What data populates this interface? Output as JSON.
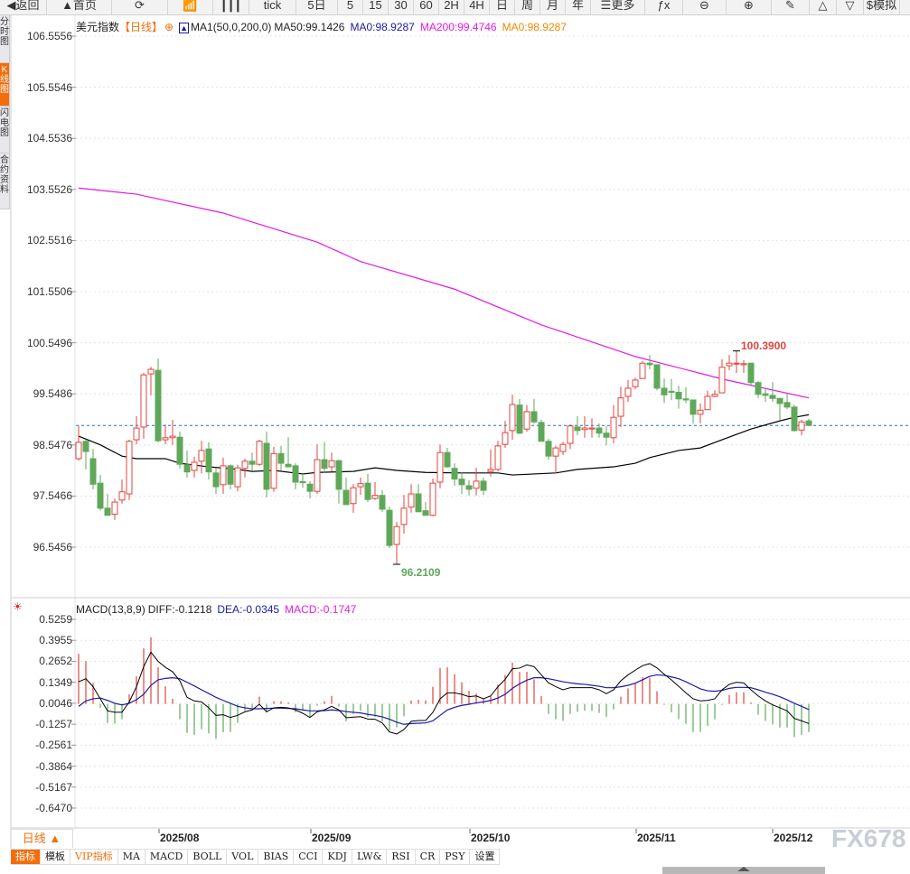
{
  "toolbar": [
    {
      "label": "◀返回",
      "icon": "back-arrow-icon"
    },
    {
      "label": "▲首页",
      "icon": "home-icon"
    },
    {
      "label": "⟳",
      "icon": "refresh-icon"
    },
    {
      "label": "📶",
      "icon": "bar-chart-icon"
    },
    {
      "label": "┃┃┃",
      "icon": "candlestick-icon"
    },
    {
      "label": "tick"
    },
    {
      "label": "5日"
    },
    {
      "label": "5"
    },
    {
      "label": "15"
    },
    {
      "label": "30"
    },
    {
      "label": "60"
    },
    {
      "label": "2H"
    },
    {
      "label": "4H"
    },
    {
      "label": "日"
    },
    {
      "label": "周"
    },
    {
      "label": "月"
    },
    {
      "label": "年"
    },
    {
      "label": "☰更多",
      "icon": "menu-icon"
    },
    {
      "label": "ƒx",
      "icon": "function-icon"
    },
    {
      "label": "⊖",
      "icon": "zoom-out-icon"
    },
    {
      "label": "⊕",
      "icon": "zoom-in-icon"
    },
    {
      "label": "✎",
      "icon": "pen-icon"
    },
    {
      "label": "△",
      "icon": "triangle-icon"
    },
    {
      "label": "▽",
      "icon": "triangle-down-icon"
    },
    {
      "label": "$模拟",
      "icon": "dollar-icon"
    }
  ],
  "sidebar": [
    {
      "label": "分时图",
      "active": false
    },
    {
      "label": "K线图",
      "active": true
    },
    {
      "label": "闪电图",
      "active": false
    },
    {
      "label": "合约资料",
      "active": false
    }
  ],
  "legend": {
    "symbol": "美元指数",
    "period": "【日线】",
    "ma_name": "MA1(50,0,200,0)",
    "ma50": "MA50:99.1426",
    "ma0a": "MA0:98.9287",
    "ma200": "MA200:99.4746",
    "ma0b": "MA0:98.9287"
  },
  "macd_legend": {
    "name": "MACD(13,8,9)",
    "diff": "DIFF:-0.1218",
    "dea": "DEA:-0.0345",
    "macd": "MACD:-0.1747"
  },
  "colors": {
    "up": "#e0443f",
    "down": "#5fa85a",
    "ma50": "#000000",
    "ma200": "#e619e6",
    "diff": "#000000",
    "dea": "#1a1aa6",
    "last_price_line": "#1e6fd9",
    "accent": "#f46d0b"
  },
  "chart_data": [
    {
      "type": "candlestick",
      "y_ticks": [
        "106.5556",
        "105.5546",
        "104.5536",
        "103.5526",
        "102.5516",
        "101.5506",
        "100.5496",
        "99.5486",
        "98.5476",
        "97.5466",
        "96.5456"
      ],
      "ylim": [
        96.5456,
        106.5556
      ],
      "x_ticks": [
        "2025/08",
        "2025/09",
        "2025/10",
        "2025/11",
        "2025/12"
      ],
      "last_price": 98.9287,
      "high_label": "100.3900",
      "low_label": "96.2109",
      "candles_ohlc": [
        [
          98.28,
          98.93,
          98.24,
          98.6
        ],
        [
          98.62,
          98.65,
          98.07,
          98.42
        ],
        [
          98.28,
          98.47,
          97.68,
          97.78
        ],
        [
          97.8,
          97.96,
          97.27,
          97.31
        ],
        [
          97.31,
          97.59,
          97.17,
          97.17
        ],
        [
          97.19,
          97.5,
          97.08,
          97.43
        ],
        [
          97.47,
          97.87,
          97.4,
          97.63
        ],
        [
          97.59,
          98.65,
          97.47,
          98.62
        ],
        [
          98.65,
          99.11,
          98.56,
          98.88
        ],
        [
          98.9,
          99.96,
          98.67,
          99.92
        ],
        [
          99.94,
          100.08,
          99.52,
          100.03
        ],
        [
          100.01,
          100.24,
          98.6,
          98.63
        ],
        [
          98.65,
          98.95,
          98.56,
          98.69
        ],
        [
          98.69,
          99.04,
          98.55,
          98.72
        ],
        [
          98.7,
          98.81,
          98.09,
          98.17
        ],
        [
          98.16,
          98.44,
          97.91,
          98.02
        ],
        [
          98.05,
          98.32,
          97.91,
          98.21
        ],
        [
          98.23,
          98.63,
          97.99,
          98.44
        ],
        [
          98.47,
          98.6,
          97.87,
          98.02
        ],
        [
          98.0,
          98.09,
          97.59,
          97.73
        ],
        [
          97.77,
          98.3,
          97.59,
          98.14
        ],
        [
          98.14,
          98.16,
          97.68,
          97.78
        ],
        [
          97.73,
          98.16,
          97.64,
          98.1
        ],
        [
          98.09,
          98.28,
          97.91,
          98.23
        ],
        [
          98.23,
          98.4,
          98.05,
          98.17
        ],
        [
          98.17,
          98.65,
          98.14,
          98.62
        ],
        [
          98.58,
          98.81,
          97.52,
          97.68
        ],
        [
          97.7,
          98.51,
          97.63,
          98.38
        ],
        [
          98.38,
          98.53,
          98.05,
          98.19
        ],
        [
          98.17,
          98.7,
          98.12,
          98.12
        ],
        [
          98.14,
          98.19,
          97.68,
          97.82
        ],
        [
          97.83,
          97.98,
          97.71,
          97.81
        ],
        [
          97.78,
          97.84,
          97.5,
          97.64
        ],
        [
          97.64,
          98.56,
          97.59,
          98.26
        ],
        [
          98.26,
          98.61,
          98.01,
          98.09
        ],
        [
          98.12,
          98.4,
          98.03,
          98.24
        ],
        [
          98.24,
          98.26,
          97.4,
          97.68
        ],
        [
          97.66,
          97.91,
          97.38,
          97.38
        ],
        [
          97.4,
          97.78,
          97.22,
          97.71
        ],
        [
          97.73,
          97.91,
          97.57,
          97.79
        ],
        [
          97.8,
          97.98,
          97.43,
          97.48
        ],
        [
          97.5,
          97.82,
          97.47,
          97.56
        ],
        [
          97.56,
          97.66,
          97.24,
          97.29
        ],
        [
          97.27,
          97.34,
          96.53,
          96.58
        ],
        [
          96.6,
          97.04,
          96.2109,
          96.95
        ],
        [
          96.99,
          97.57,
          96.81,
          97.31
        ],
        [
          97.33,
          97.78,
          97.22,
          97.59
        ],
        [
          97.59,
          97.78,
          97.24,
          97.24
        ],
        [
          97.26,
          97.43,
          97.17,
          97.17
        ],
        [
          97.17,
          97.89,
          97.15,
          97.8
        ],
        [
          97.82,
          98.56,
          97.7,
          98.4
        ],
        [
          98.4,
          98.49,
          98.1,
          98.12
        ],
        [
          98.09,
          98.19,
          97.75,
          97.88
        ],
        [
          97.88,
          98.02,
          97.59,
          97.77
        ],
        [
          97.75,
          97.86,
          97.56,
          97.68
        ],
        [
          97.7,
          98.1,
          97.56,
          97.84
        ],
        [
          97.84,
          97.91,
          97.57,
          97.66
        ],
        [
          98.03,
          98.46,
          97.93,
          98.07
        ],
        [
          98.07,
          98.63,
          98.03,
          98.53
        ],
        [
          98.56,
          99.02,
          98.49,
          98.79
        ],
        [
          98.83,
          99.53,
          98.65,
          99.34
        ],
        [
          99.33,
          99.45,
          98.76,
          98.78
        ],
        [
          98.86,
          99.33,
          98.81,
          99.2
        ],
        [
          99.2,
          99.45,
          98.97,
          99.0
        ],
        [
          98.99,
          99.04,
          98.62,
          98.62
        ],
        [
          98.62,
          98.67,
          98.26,
          98.33
        ],
        [
          98.33,
          98.53,
          97.99,
          98.49
        ],
        [
          98.42,
          98.61,
          98.35,
          98.56
        ],
        [
          98.58,
          98.95,
          98.47,
          98.92
        ],
        [
          98.9,
          99.11,
          98.74,
          98.83
        ],
        [
          98.85,
          99.11,
          98.69,
          98.88
        ],
        [
          98.86,
          99.07,
          98.69,
          98.88
        ],
        [
          98.88,
          98.97,
          98.69,
          98.78
        ],
        [
          98.78,
          98.92,
          98.54,
          98.7
        ],
        [
          98.69,
          99.33,
          98.58,
          99.09
        ],
        [
          99.11,
          99.69,
          98.9,
          99.47
        ],
        [
          99.5,
          99.82,
          99.39,
          99.66
        ],
        [
          99.69,
          99.87,
          99.64,
          99.82
        ],
        [
          99.85,
          100.19,
          99.85,
          100.15
        ],
        [
          100.15,
          100.31,
          100.03,
          100.12
        ],
        [
          100.12,
          100.12,
          99.62,
          99.66
        ],
        [
          99.66,
          99.85,
          99.37,
          99.53
        ],
        [
          99.6,
          99.84,
          99.43,
          99.58
        ],
        [
          99.58,
          99.71,
          99.26,
          99.45
        ],
        [
          99.45,
          99.68,
          99.37,
          99.43
        ],
        [
          99.43,
          99.43,
          98.97,
          99.15
        ],
        [
          99.15,
          99.36,
          98.97,
          99.23
        ],
        [
          99.24,
          99.61,
          99.24,
          99.5
        ],
        [
          99.5,
          99.62,
          99.48,
          99.54
        ],
        [
          99.57,
          100.23,
          99.57,
          100.07
        ],
        [
          100.1,
          100.31,
          100.01,
          100.15
        ],
        [
          100.15,
          100.39,
          99.96,
          100.15
        ],
        [
          100.12,
          100.21,
          99.96,
          100.14
        ],
        [
          100.15,
          100.15,
          99.7,
          99.77
        ],
        [
          99.77,
          99.8,
          99.47,
          99.54
        ],
        [
          99.55,
          99.66,
          99.39,
          99.52
        ],
        [
          99.52,
          99.78,
          99.39,
          99.46
        ],
        [
          99.46,
          99.46,
          99.04,
          99.36
        ],
        [
          99.38,
          99.55,
          99.25,
          99.29
        ],
        [
          99.29,
          99.34,
          98.81,
          98.83
        ],
        [
          98.84,
          99.04,
          98.74,
          99.0
        ],
        [
          99.02,
          99.06,
          98.93,
          98.93
        ]
      ],
      "ma50_points": [
        [
          0,
          98.72
        ],
        [
          3,
          98.55
        ],
        [
          6,
          98.33
        ],
        [
          8,
          98.28
        ],
        [
          12,
          98.28
        ],
        [
          14,
          98.19
        ],
        [
          18,
          98.12
        ],
        [
          22,
          98.07
        ],
        [
          24,
          98.03
        ],
        [
          27,
          98.05
        ],
        [
          31,
          97.98
        ],
        [
          33,
          98.01
        ],
        [
          38,
          98.03
        ],
        [
          41,
          98.1
        ],
        [
          44,
          98.05
        ],
        [
          48,
          98.01
        ],
        [
          53,
          98.0
        ],
        [
          58,
          98.0
        ],
        [
          60,
          97.96
        ],
        [
          66,
          98.0
        ],
        [
          69,
          98.07
        ],
        [
          74,
          98.12
        ],
        [
          77,
          98.19
        ],
        [
          79,
          98.3
        ],
        [
          83,
          98.44
        ],
        [
          86,
          98.49
        ],
        [
          89,
          98.65
        ],
        [
          93,
          98.86
        ],
        [
          97,
          99.02
        ],
        [
          99,
          99.09
        ],
        [
          101,
          99.14
        ]
      ],
      "ma200_points": [
        [
          0,
          103.58
        ],
        [
          8,
          103.46
        ],
        [
          20,
          103.09
        ],
        [
          33,
          102.52
        ],
        [
          39,
          102.14
        ],
        [
          52,
          101.6
        ],
        [
          64,
          100.9
        ],
        [
          77,
          100.28
        ],
        [
          89,
          99.84
        ],
        [
          101,
          99.47
        ]
      ]
    },
    {
      "type": "macd",
      "y_ticks": [
        "0.5259",
        "0.3955",
        "0.2652",
        "0.1349",
        "0.0046",
        "-0.1257",
        "-0.2561",
        "-0.3864",
        "-0.5167",
        "-0.6470"
      ],
      "ylim": [
        -0.647,
        0.5259
      ],
      "macd": [
        0.312,
        0.266,
        0.131,
        -0.024,
        -0.118,
        -0.123,
        -0.095,
        0.06,
        0.172,
        0.346,
        0.415,
        0.228,
        0.11,
        0.032,
        -0.095,
        -0.18,
        -0.193,
        -0.157,
        -0.183,
        -0.217,
        -0.176,
        -0.174,
        -0.118,
        -0.043,
        -0.024,
        0.045,
        -0.052,
        0.017,
        0.017,
        0.009,
        -0.052,
        -0.043,
        -0.08,
        -0.011,
        0.017,
        0.05,
        -0.015,
        -0.108,
        -0.062,
        -0.043,
        -0.08,
        -0.08,
        -0.108,
        -0.165,
        -0.146,
        -0.077,
        0.022,
        0.026,
        0.022,
        0.107,
        0.224,
        0.228,
        0.185,
        0.135,
        0.082,
        0.065,
        0.032,
        0.05,
        0.12,
        0.18,
        0.258,
        0.2,
        0.2,
        0.153,
        0.05,
        -0.062,
        -0.095,
        -0.105,
        -0.062,
        -0.049,
        -0.043,
        -0.043,
        -0.056,
        -0.08,
        -0.034,
        0.045,
        0.097,
        0.129,
        0.166,
        0.163,
        0.079,
        -0.006,
        -0.052,
        -0.095,
        -0.123,
        -0.174,
        -0.174,
        -0.137,
        -0.095,
        -0.006,
        0.056,
        0.073,
        0.073,
        0.009,
        -0.067,
        -0.105,
        -0.127,
        -0.146,
        -0.146,
        -0.206,
        -0.193,
        -0.1747
      ],
      "diff": [
        0.138,
        0.157,
        0.107,
        0.032,
        -0.043,
        -0.052,
        -0.052,
        0.013,
        0.107,
        0.232,
        0.322,
        0.265,
        0.228,
        0.2,
        0.144,
        0.041,
        0.019,
        0.013,
        -0.024,
        -0.071,
        -0.067,
        -0.084,
        -0.071,
        -0.049,
        -0.037,
        -0.002,
        -0.049,
        -0.024,
        -0.021,
        -0.024,
        -0.037,
        -0.058,
        -0.084,
        -0.049,
        -0.037,
        -0.015,
        -0.037,
        -0.086,
        -0.082,
        -0.079,
        -0.094,
        -0.095,
        -0.118,
        -0.174,
        -0.187,
        -0.159,
        -0.108,
        -0.103,
        -0.103,
        -0.052,
        0.032,
        0.069,
        0.069,
        0.06,
        0.045,
        0.05,
        0.032,
        0.05,
        0.107,
        0.153,
        0.219,
        0.223,
        0.243,
        0.232,
        0.181,
        0.131,
        0.107,
        0.088,
        0.101,
        0.101,
        0.101,
        0.101,
        0.088,
        0.064,
        0.088,
        0.144,
        0.181,
        0.21,
        0.238,
        0.251,
        0.224,
        0.185,
        0.15,
        0.11,
        0.069,
        0.032,
        0.019,
        0.022,
        0.032,
        0.088,
        0.122,
        0.135,
        0.131,
        0.088,
        0.05,
        0.019,
        -0.006,
        -0.024,
        -0.043,
        -0.09,
        -0.105,
        -0.1218
      ],
      "dea": [
        -0.015,
        0.019,
        0.032,
        0.037,
        0.022,
        0.004,
        -0.006,
        0.004,
        0.026,
        0.06,
        0.116,
        0.15,
        0.159,
        0.163,
        0.157,
        0.135,
        0.112,
        0.088,
        0.065,
        0.041,
        0.022,
        0.004,
        -0.015,
        -0.024,
        -0.03,
        -0.03,
        -0.028,
        -0.026,
        -0.026,
        -0.028,
        -0.03,
        -0.037,
        -0.043,
        -0.043,
        -0.041,
        -0.037,
        -0.041,
        -0.047,
        -0.052,
        -0.056,
        -0.065,
        -0.071,
        -0.08,
        -0.095,
        -0.114,
        -0.127,
        -0.122,
        -0.12,
        -0.118,
        -0.105,
        -0.071,
        -0.037,
        -0.021,
        -0.009,
        -0.002,
        0.007,
        0.013,
        0.022,
        0.037,
        0.06,
        0.097,
        0.125,
        0.148,
        0.163,
        0.163,
        0.157,
        0.148,
        0.138,
        0.131,
        0.125,
        0.122,
        0.116,
        0.11,
        0.101,
        0.101,
        0.107,
        0.116,
        0.129,
        0.15,
        0.172,
        0.181,
        0.178,
        0.168,
        0.157,
        0.138,
        0.116,
        0.094,
        0.082,
        0.079,
        0.084,
        0.097,
        0.103,
        0.103,
        0.101,
        0.088,
        0.073,
        0.06,
        0.045,
        0.026,
        0.004,
        -0.015,
        -0.0345
      ]
    }
  ],
  "period_button": "日线 ▲",
  "tabs": [
    {
      "label": "指标",
      "active": true
    },
    {
      "label": "模板"
    },
    {
      "label": "VIP指标",
      "vip": true
    },
    {
      "label": "MA"
    },
    {
      "label": "MACD"
    },
    {
      "label": "BOLL"
    },
    {
      "label": "VOL"
    },
    {
      "label": "BIAS"
    },
    {
      "label": "CCI"
    },
    {
      "label": "KDJ"
    },
    {
      "label": "LW&"
    },
    {
      "label": "RSI"
    },
    {
      "label": "CR"
    },
    {
      "label": "PSY"
    },
    {
      "label": "设置"
    }
  ],
  "watermark": "FX678"
}
